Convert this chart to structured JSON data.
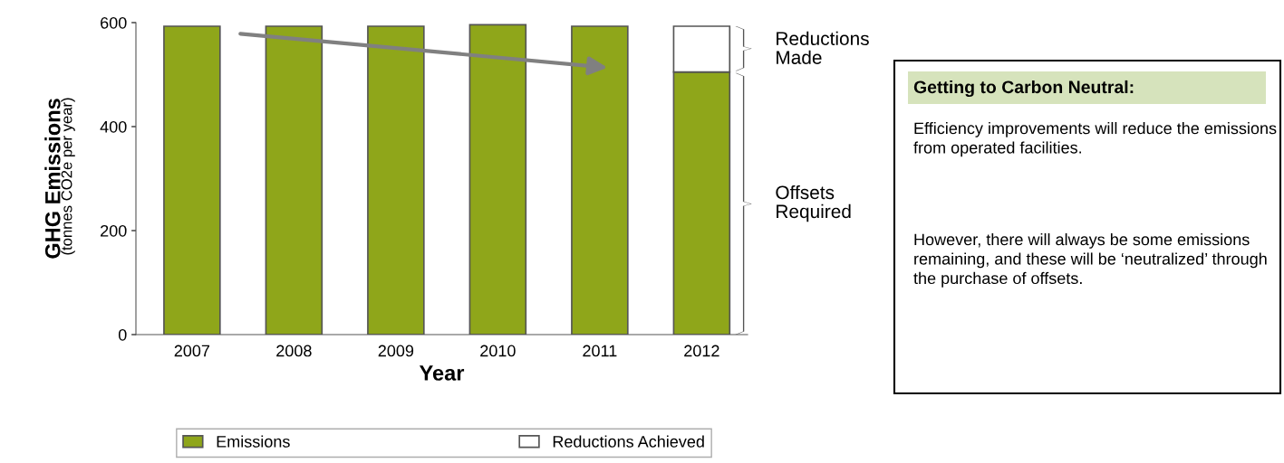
{
  "chart_data": {
    "type": "bar",
    "stacked": true,
    "categories": [
      "2007",
      "2008",
      "2009",
      "2010",
      "2011",
      "2012"
    ],
    "series": [
      {
        "name": "Emissions",
        "color": "#8fa61a",
        "values": [
          593,
          593,
          593,
          596,
          593,
          505
        ]
      },
      {
        "name": "Reductions Achieved",
        "color": "#ffffff",
        "values": [
          0,
          0,
          0,
          0,
          0,
          88
        ]
      }
    ],
    "xlabel": "Year",
    "ylabel": "GHG Emissions",
    "ylim": [
      0,
      600
    ],
    "yticks": [
      0,
      200,
      400,
      600
    ],
    "grid": false,
    "legend": "bottom",
    "annotations": [
      "(tonnes CO2e per year)",
      "Reductions\nMade",
      "Offsets\nRequired",
      "Getting to Carbon Neutral:",
      "Efficiency improvements will reduce the emissions from operated facilities.",
      "However, there will always be some emissions remaining, and these will be ‘neutralized’ through the purchase of offsets."
    ]
  }
}
